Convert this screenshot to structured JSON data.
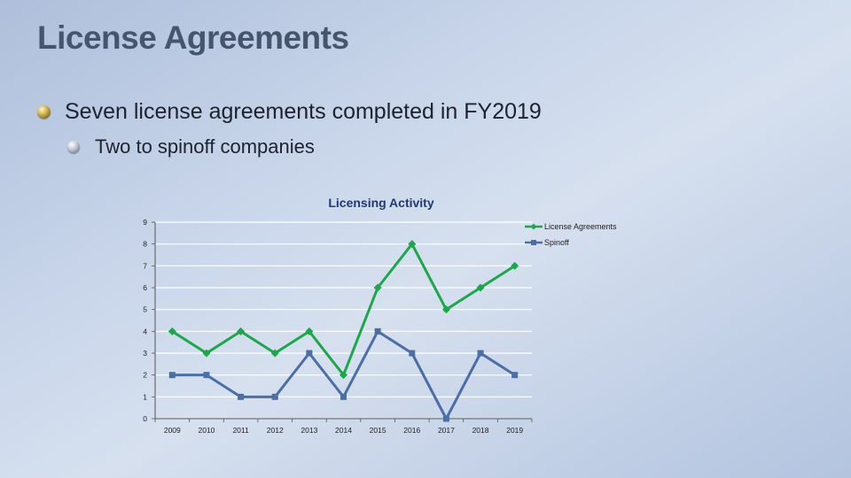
{
  "slide": {
    "title": "License Agreements",
    "bullets": [
      {
        "text": "Seven license agreements completed in FY2019",
        "level": 1
      },
      {
        "text": "Two to spinoff companies",
        "level": 2
      }
    ]
  },
  "colors": {
    "series_1": "#1ca84a",
    "series_2": "#4a6fa5",
    "title_text": "#46556e",
    "chart_title": "#1f3a73"
  },
  "chart_data": {
    "type": "line",
    "title": "Licensing Activity",
    "xlabel": "",
    "ylabel": "",
    "x": [
      "2009",
      "2010",
      "2011",
      "2012",
      "2013",
      "2014",
      "2015",
      "2016",
      "2017",
      "2018",
      "2019"
    ],
    "ylim": [
      0,
      9
    ],
    "yticks": [
      0,
      1,
      2,
      3,
      4,
      5,
      6,
      7,
      8,
      9
    ],
    "grid": true,
    "legend": "top-right",
    "series": [
      {
        "name": "License Agreements",
        "marker": "diamond",
        "values": [
          4,
          3,
          4,
          3,
          4,
          2,
          6,
          8,
          5,
          6,
          7
        ]
      },
      {
        "name": "Spinoff",
        "marker": "square",
        "values": [
          2,
          2,
          1,
          1,
          3,
          1,
          4,
          3,
          0,
          3,
          2
        ]
      }
    ]
  }
}
